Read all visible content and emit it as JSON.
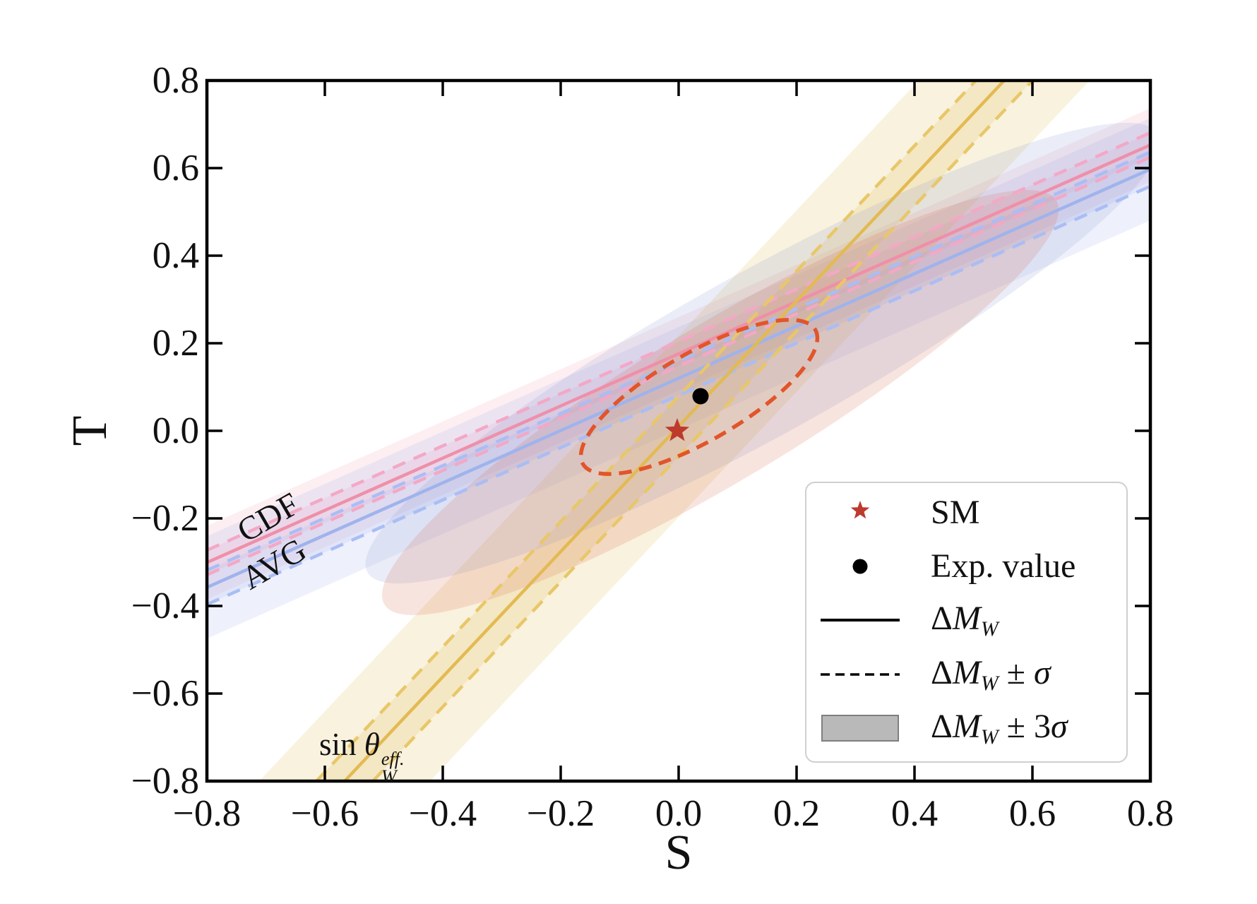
{
  "figure": {
    "background": "#ffffff"
  },
  "axes": {
    "xlabel": "S",
    "ylabel": "T",
    "x_ticks": [
      {
        "v": -0.8,
        "label": "−0.8"
      },
      {
        "v": -0.6,
        "label": "−0.6"
      },
      {
        "v": -0.4,
        "label": "−0.4"
      },
      {
        "v": -0.2,
        "label": "−0.2"
      },
      {
        "v": 0.0,
        "label": "0.0"
      },
      {
        "v": 0.2,
        "label": "0.2"
      },
      {
        "v": 0.4,
        "label": "0.4"
      },
      {
        "v": 0.6,
        "label": "0.6"
      },
      {
        "v": 0.8,
        "label": "0.8"
      }
    ],
    "y_ticks": [
      {
        "v": -0.8,
        "label": "−0.8"
      },
      {
        "v": -0.6,
        "label": "−0.6"
      },
      {
        "v": -0.4,
        "label": "−0.4"
      },
      {
        "v": -0.2,
        "label": "−0.2"
      },
      {
        "v": 0.0,
        "label": "0.0"
      },
      {
        "v": 0.2,
        "label": "0.2"
      },
      {
        "v": 0.4,
        "label": "0.4"
      },
      {
        "v": 0.6,
        "label": "0.6"
      },
      {
        "v": 0.8,
        "label": "0.8"
      }
    ]
  },
  "annotations": {
    "cdf": "CDF",
    "avg": "AVG",
    "sin_theta": {
      "segments": [
        {
          "t": "sin ",
          "s": "n"
        },
        {
          "t": "θ",
          "s": "i"
        },
        {
          "s": "stack",
          "sup": "eff.",
          "sub": "W"
        }
      ]
    }
  },
  "legend": {
    "items": [
      {
        "marker": "star",
        "segments": [
          {
            "t": "SM",
            "s": "n"
          }
        ]
      },
      {
        "marker": "dot",
        "segments": [
          {
            "t": "Exp. value",
            "s": "n"
          }
        ]
      },
      {
        "marker": "solid",
        "segments": [
          {
            "t": "Δ",
            "s": "n"
          },
          {
            "t": "M",
            "s": "i"
          },
          {
            "t": "W",
            "s": "sub"
          }
        ]
      },
      {
        "marker": "dashed",
        "segments": [
          {
            "t": "Δ",
            "s": "n"
          },
          {
            "t": "M",
            "s": "i"
          },
          {
            "t": "W",
            "s": "sub"
          },
          {
            "t": " ± ",
            "s": "n"
          },
          {
            "t": "σ",
            "s": "i"
          }
        ]
      },
      {
        "marker": "band",
        "segments": [
          {
            "t": "Δ",
            "s": "n"
          },
          {
            "t": "M",
            "s": "i"
          },
          {
            "t": "W",
            "s": "sub"
          },
          {
            "t": " ± 3",
            "s": "n"
          },
          {
            "t": "σ",
            "s": "i"
          }
        ]
      }
    ]
  },
  "chart_data": {
    "type": "line",
    "title": "",
    "xlabel": "S",
    "ylabel": "T",
    "xlim": [
      -0.8,
      0.8
    ],
    "ylim": [
      -0.8,
      0.8
    ],
    "xticks": [
      -0.8,
      -0.6,
      -0.4,
      -0.2,
      0.0,
      0.2,
      0.4,
      0.6,
      0.8
    ],
    "yticks": [
      -0.8,
      -0.6,
      -0.4,
      -0.2,
      0.0,
      0.2,
      0.4,
      0.6,
      0.8
    ],
    "grid": false,
    "legend_position": "lower right",
    "points": [
      {
        "label": "SM",
        "S": 0.0,
        "T": 0.0,
        "marker": "star",
        "color": "#bd3a2c"
      },
      {
        "label": "Exp. value",
        "S": 0.04,
        "T": 0.08,
        "marker": "circle",
        "color": "#000000"
      }
    ],
    "constraint_bands": [
      {
        "label": "CDF",
        "quantity": "ΔM_W (CDF)",
        "color": "#ef8fa9",
        "T_at_S0": 0.176,
        "slope_dT_dS": 0.596,
        "sigma_T": 0.028,
        "band_3sigma_T": 0.084,
        "line_styles": [
          "solid center",
          "dashed ±σ",
          "shaded ±3σ"
        ]
      },
      {
        "label": "AVG",
        "quantity": "ΔM_W (average)",
        "color": "#9fb3ec",
        "T_at_S0": 0.12,
        "slope_dT_dS": 0.597,
        "sigma_T": 0.039,
        "band_3sigma_T": 0.117,
        "line_styles": [
          "solid center",
          "dashed ±σ",
          "shaded ±3σ"
        ]
      },
      {
        "label": "sin θ_W^eff.",
        "quantity": "sin θ_W^eff.",
        "color": "#e3ba52",
        "T_at_S0": 0.013,
        "slope_dT_dS": 1.434,
        "sigma_S": 0.048,
        "band_3sigma_S": 0.145,
        "line_styles": [
          "solid center",
          "dashed ±σ",
          "shaded ±3σ"
        ]
      }
    ],
    "ellipses": [
      {
        "label": "CDF fit region",
        "center_S": 0.071,
        "center_T": 0.065,
        "fill": "#d7694b",
        "opacity": 0.18,
        "tilt": "positive"
      },
      {
        "label": "AVG fit region",
        "center_S": 0.143,
        "center_T": 0.177,
        "fill": "#8296d2",
        "opacity": 0.17,
        "tilt": "positive"
      },
      {
        "label": "confidence contour",
        "center_S": 0.035,
        "center_T": 0.077,
        "style": "dashed",
        "color": "#e2552a",
        "tilt": "positive"
      }
    ]
  },
  "colors": {
    "pink_solid": "#ef8fa9",
    "pink_dashed": "#f3a8c6",
    "pink_fill": "#ef8fa9",
    "blue_solid": "#9fb3ec",
    "blue_dashed": "#aabdf4",
    "blue_fill": "#9fb3ec",
    "yellow_solid": "#e3ba52",
    "yellow_dashed": "#e8c769",
    "yellow_fill": "#e3be5a",
    "salmon_ellipse": "#d7694b",
    "blue_ellipse": "#8296d2",
    "contour": "#e2552a",
    "star": "#bd3a2c",
    "dot": "#000000",
    "legend_band_fill": "#b9b9b9",
    "legend_band_edge": "#7f7f7f",
    "axis": "#000000"
  }
}
